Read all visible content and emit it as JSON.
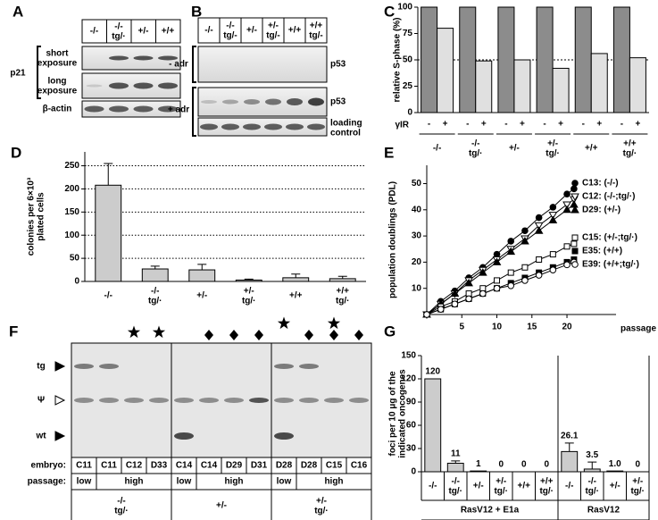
{
  "panels": {
    "A": {
      "letter": "A",
      "headers": [
        "-/-",
        "-/-\ntg/·",
        "+/-",
        "+/+"
      ],
      "rows": [
        "short\nexposure",
        "long\nexposure",
        "β-actin"
      ],
      "protein": "p21"
    },
    "B": {
      "letter": "B",
      "headers": [
        "-/-",
        "-/-\ntg/-",
        "+/-",
        "+/-\ntg/-",
        "+/+",
        "+/+\ntg/-"
      ],
      "conditions": [
        "- adr",
        "+ adr"
      ],
      "rows": [
        "p53",
        "p53",
        "loading\ncontrol"
      ]
    },
    "F": {
      "letter": "F",
      "bands": [
        "tg",
        "Ψ",
        "wt"
      ],
      "embryo_label": "embryo:",
      "embryos": [
        "C11",
        "C11",
        "C12",
        "D33",
        "C14",
        "C14",
        "D29",
        "D31",
        "D28",
        "D28",
        "C15",
        "C16"
      ],
      "passage_label": "passage:",
      "passages": [
        "low",
        "high",
        "low",
        "high",
        "low",
        "high"
      ],
      "genotypes": [
        "-/-\ntg/·",
        "+/-",
        "+/-\ntg/·"
      ]
    }
  },
  "chart_data": [
    {
      "type": "grouped-bar",
      "panel": "C",
      "y_label": "relative S-phase (%)",
      "x_label": "γIR",
      "categories": [
        "-/-",
        "-/-\ntg/·",
        "+/-",
        "+/-\ntg/·",
        "+/+",
        "+/+\ntg/·"
      ],
      "series": [
        {
          "name": "-",
          "color": "#8c8c8c",
          "values": [
            100,
            100,
            100,
            100,
            100,
            100
          ]
        },
        {
          "name": "+",
          "color": "#e0e0e0",
          "values": [
            80,
            49,
            50,
            42,
            56,
            52
          ]
        }
      ],
      "ylim": [
        0,
        100
      ],
      "yticks": [
        0,
        25,
        50,
        75,
        100
      ],
      "reference_line": 50
    },
    {
      "type": "bar",
      "panel": "D",
      "y_label": "colonies per 6×10³\nplated cells",
      "categories": [
        "-/-",
        "-/-\ntg/·",
        "+/-",
        "+/-\ntg/·",
        "+/+",
        "+/+\ntg/·"
      ],
      "values": [
        208,
        27,
        25,
        3,
        8,
        6
      ],
      "errors": [
        47,
        6,
        12,
        2,
        8,
        5
      ],
      "color": "#cccccc",
      "ylim": [
        0,
        280
      ],
      "yticks": [
        0,
        50,
        100,
        150,
        200,
        250
      ],
      "grid": true
    },
    {
      "type": "line",
      "panel": "E",
      "y_label": "population doublings (PDL)",
      "x_label": "passage",
      "x": [
        0,
        2,
        4,
        6,
        8,
        10,
        12,
        14,
        16,
        18,
        20,
        21
      ],
      "series": [
        {
          "name": "C13: (-/-)",
          "color": "#000000",
          "marker": "circle-filled",
          "values": [
            0,
            5,
            9,
            14,
            18,
            23,
            28,
            32,
            37,
            41,
            46,
            48
          ]
        },
        {
          "name": "C12: (-/-;tg/·)",
          "color": "#000000",
          "marker": "triangle-down-open",
          "values": [
            0,
            4,
            8,
            13,
            17,
            21,
            25,
            29,
            34,
            38,
            42,
            44
          ]
        },
        {
          "name": "D29: (+/-)",
          "color": "#000000",
          "marker": "triangle-up-filled",
          "values": [
            0,
            4,
            8,
            12,
            16,
            20,
            24,
            28,
            32,
            36,
            40,
            42
          ]
        },
        {
          "name": "C15: (+/-;tg/·)",
          "color": "#000000",
          "marker": "square-open",
          "values": [
            0,
            3,
            5,
            8,
            10,
            13,
            16,
            18,
            21,
            23,
            26,
            27
          ]
        },
        {
          "name": "E35: (+/+)",
          "color": "#000000",
          "marker": "square-filled",
          "values": [
            0,
            2,
            4,
            6,
            8,
            10,
            12,
            14,
            16,
            18,
            20,
            21
          ]
        },
        {
          "name": "E39: (+/+;tg/·)",
          "color": "#000000",
          "marker": "circle-open",
          "values": [
            0,
            2,
            4,
            6,
            8,
            10,
            11,
            13,
            15,
            17,
            19,
            20
          ]
        }
      ],
      "xlim": [
        0,
        27
      ],
      "xticks": [
        5,
        10,
        15,
        20
      ],
      "ylim": [
        0,
        57
      ],
      "yticks": [
        10,
        20,
        30,
        40,
        50
      ]
    },
    {
      "type": "bar",
      "panel": "G",
      "y_label": "foci per 10 μg of the\nindicated oncogenes",
      "color": "#cccccc",
      "groups": [
        {
          "name": "RasV12 + E1a",
          "categories": [
            "-/-",
            "-/-\ntg/·",
            "+/-",
            "+/-\ntg/·",
            "+/+",
            "+/+\ntg/·"
          ],
          "values": [
            120,
            11,
            1,
            0,
            0,
            0
          ],
          "value_labels": [
            "120",
            "11",
            "1",
            "0",
            "0",
            "0"
          ],
          "errors": [
            null,
            3,
            null,
            null,
            null,
            null
          ]
        },
        {
          "name": "RasV12",
          "categories": [
            "-/-",
            "-/-\ntg/·",
            "+/-",
            "+/-\ntg/·"
          ],
          "values": [
            26.1,
            3.5,
            1.0,
            0
          ],
          "value_labels": [
            "26.1",
            "3.5",
            "1.0",
            "0"
          ],
          "errors": [
            11,
            9,
            null,
            null
          ]
        }
      ],
      "ylim": [
        0,
        150
      ],
      "yticks": [
        0,
        30,
        60,
        90,
        120,
        150
      ]
    }
  ]
}
